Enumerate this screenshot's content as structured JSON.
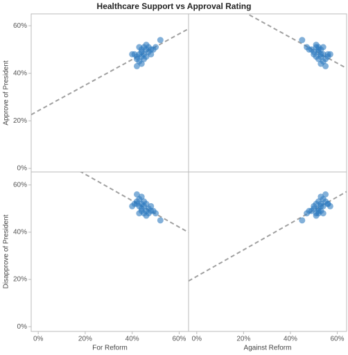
{
  "chart_data": [
    {
      "type": "scatter",
      "title": "Healthcare Support vs Approval Rating",
      "ylabel": "Approve of President",
      "color": "#2f7bbf",
      "x": [
        40,
        41,
        42,
        42,
        43,
        43,
        44,
        44,
        45,
        45,
        46,
        46,
        47,
        47,
        48,
        48,
        42,
        44,
        45,
        43,
        46,
        50,
        52,
        49,
        44
      ],
      "values": [
        48,
        48,
        46,
        47,
        45,
        51,
        50,
        49,
        51,
        48,
        52,
        50,
        49,
        51,
        50,
        48,
        43,
        44,
        46,
        48,
        47,
        51,
        54,
        50,
        47
      ],
      "xlim": [
        -3,
        64
      ],
      "ylim": [
        -1.5,
        65
      ],
      "yticks": [
        {
          "value": 0,
          "label": "0%"
        },
        {
          "value": 20,
          "label": "20%"
        },
        {
          "value": 40,
          "label": "40%"
        },
        {
          "value": 60,
          "label": "60%"
        }
      ]
    },
    {
      "type": "scatter",
      "color": "#2f7bbf",
      "x": [
        57,
        56,
        55,
        56,
        54,
        54,
        53,
        52,
        52,
        53,
        51,
        52,
        50,
        51,
        49,
        50,
        55,
        53,
        52,
        54,
        51,
        47,
        45,
        48,
        53
      ],
      "values": [
        48,
        48,
        46,
        47,
        45,
        51,
        50,
        49,
        51,
        48,
        52,
        50,
        49,
        51,
        50,
        48,
        43,
        44,
        46,
        48,
        47,
        51,
        54,
        50,
        47
      ],
      "xlim": [
        -3.5,
        64
      ],
      "ylim": [
        -1.5,
        65
      ]
    },
    {
      "type": "scatter",
      "xlabel": "For Reform",
      "ylabel": "Disapprove of President",
      "color": "#2f7bbf",
      "x": [
        40,
        41,
        42,
        42,
        43,
        43,
        44,
        44,
        45,
        45,
        46,
        46,
        47,
        47,
        48,
        48,
        42,
        44,
        45,
        43,
        46,
        50,
        52,
        49,
        44
      ],
      "values": [
        51,
        52,
        53,
        52,
        54,
        48,
        49,
        50,
        48,
        51,
        47,
        49,
        50,
        48,
        49,
        51,
        56,
        55,
        53,
        51,
        52,
        48,
        45,
        49,
        52
      ],
      "xlim": [
        -3,
        64
      ],
      "ylim": [
        -2,
        65.5
      ],
      "xticks": [
        {
          "value": 0,
          "label": "0%"
        },
        {
          "value": 20,
          "label": "20%"
        },
        {
          "value": 40,
          "label": "40%"
        },
        {
          "value": 60,
          "label": "60%"
        }
      ],
      "yticks": [
        {
          "value": 0,
          "label": "0%"
        },
        {
          "value": 20,
          "label": "20%"
        },
        {
          "value": 40,
          "label": "40%"
        },
        {
          "value": 60,
          "label": "60%"
        }
      ]
    },
    {
      "type": "scatter",
      "xlabel": "Against Reform",
      "color": "#2f7bbf",
      "x": [
        57,
        56,
        55,
        56,
        54,
        54,
        53,
        52,
        52,
        53,
        51,
        52,
        50,
        51,
        49,
        50,
        55,
        53,
        52,
        54,
        51,
        47,
        45,
        48,
        53
      ],
      "values": [
        51,
        52,
        53,
        52,
        54,
        48,
        49,
        50,
        48,
        51,
        47,
        49,
        50,
        48,
        49,
        51,
        56,
        55,
        53,
        51,
        52,
        48,
        45,
        49,
        52
      ],
      "xlim": [
        -3.5,
        64
      ],
      "ylim": [
        -2,
        65.5
      ],
      "xticks": [
        {
          "value": 0,
          "label": "0%"
        },
        {
          "value": 20,
          "label": "20%"
        },
        {
          "value": 40,
          "label": "40%"
        },
        {
          "value": 60,
          "label": "60%"
        }
      ]
    }
  ]
}
